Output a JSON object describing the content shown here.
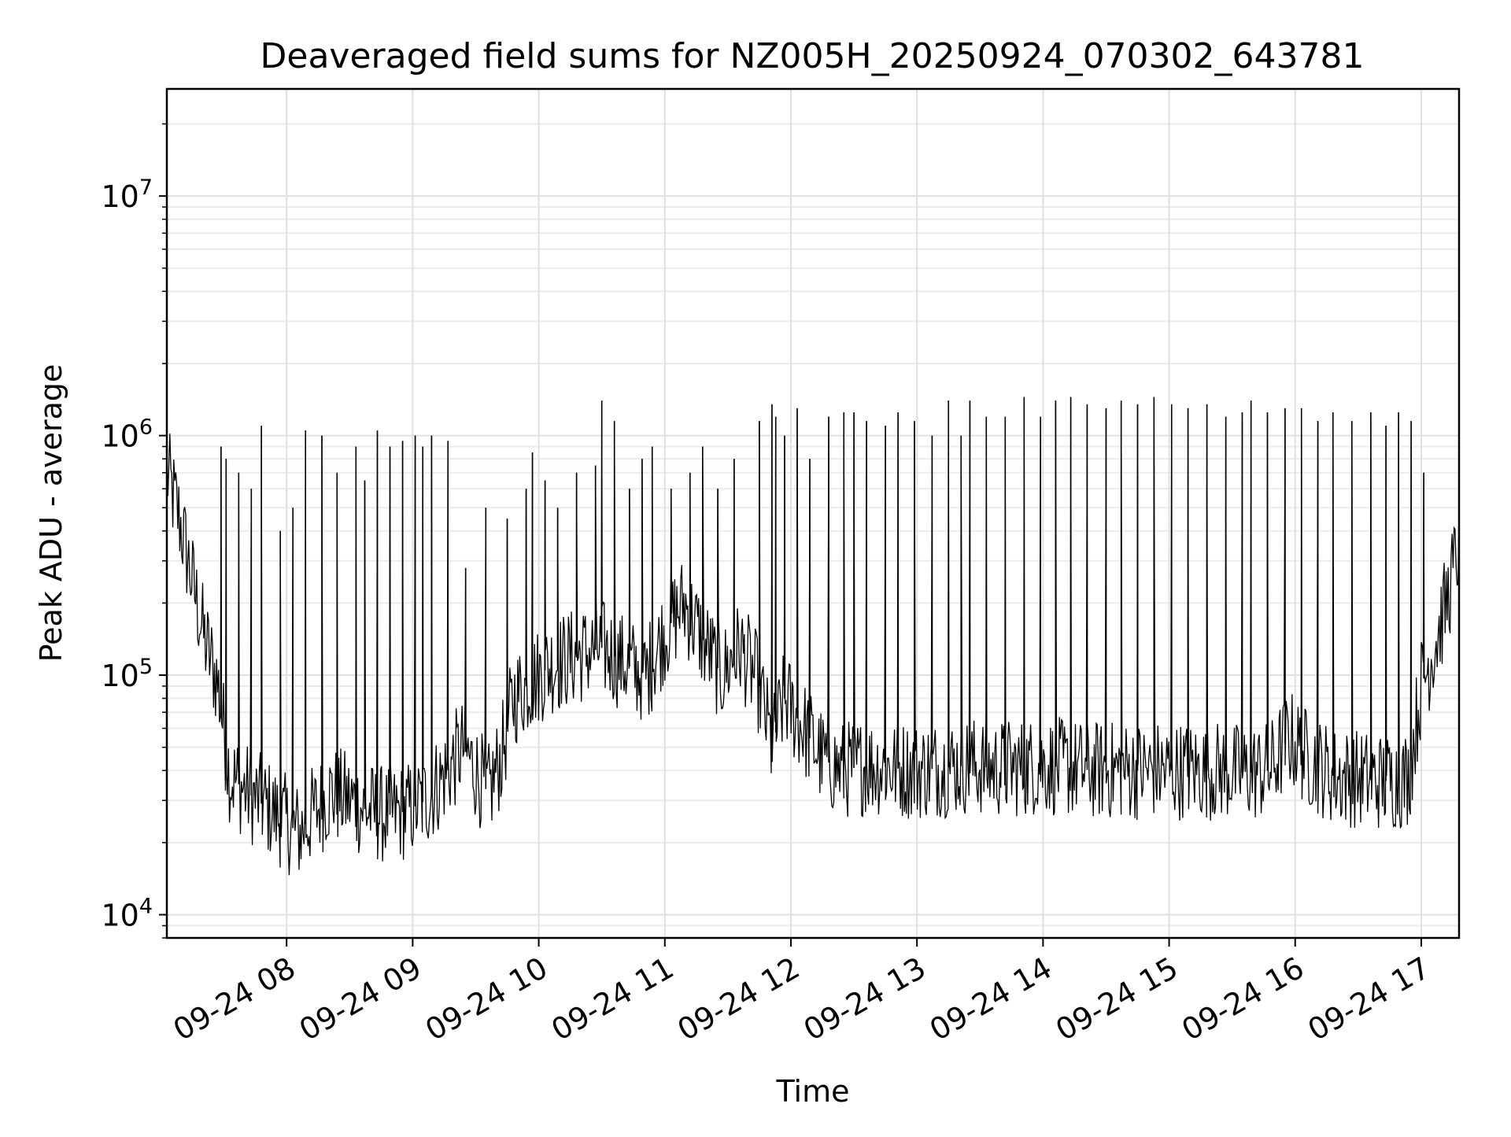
{
  "chart_data": {
    "type": "line",
    "title": "Deaveraged field sums for NZ005H_20250924_070302_643781",
    "xlabel": "Time",
    "ylabel": "Peak ADU - average",
    "yscale": "log",
    "ylim": [
      8000,
      28000000
    ],
    "xlim_hours": [
      7.05,
      17.3
    ],
    "grid": true,
    "y_major_ticks": [
      {
        "value": 10000,
        "base": "10",
        "exp": "4"
      },
      {
        "value": 100000,
        "base": "10",
        "exp": "5"
      },
      {
        "value": 1000000,
        "base": "10",
        "exp": "6"
      },
      {
        "value": 10000000,
        "base": "10",
        "exp": "7"
      }
    ],
    "x_ticks": [
      {
        "value": 8,
        "label": "09-24 08"
      },
      {
        "value": 9,
        "label": "09-24 09"
      },
      {
        "value": 10,
        "label": "09-24 10"
      },
      {
        "value": 11,
        "label": "09-24 11"
      },
      {
        "value": 12,
        "label": "09-24 12"
      },
      {
        "value": 13,
        "label": "09-24 13"
      },
      {
        "value": 14,
        "label": "09-24 14"
      },
      {
        "value": 15,
        "label": "09-24 15"
      },
      {
        "value": 16,
        "label": "09-24 16"
      },
      {
        "value": 17,
        "label": "09-24 17"
      }
    ],
    "baseline": [
      [
        7.05,
        700000
      ],
      [
        7.15,
        450000
      ],
      [
        7.25,
        250000
      ],
      [
        7.35,
        140000
      ],
      [
        7.45,
        95000
      ],
      [
        7.55,
        38000
      ],
      [
        7.7,
        32000
      ],
      [
        7.85,
        28000
      ],
      [
        8.0,
        24000
      ],
      [
        8.1,
        22000
      ],
      [
        8.2,
        26000
      ],
      [
        8.35,
        32000
      ],
      [
        8.5,
        30000
      ],
      [
        8.65,
        27000
      ],
      [
        8.8,
        26000
      ],
      [
        8.95,
        27000
      ],
      [
        9.1,
        30000
      ],
      [
        9.25,
        38000
      ],
      [
        9.4,
        50000
      ],
      [
        9.5,
        40000
      ],
      [
        9.6,
        32000
      ],
      [
        9.7,
        45000
      ],
      [
        9.8,
        80000
      ],
      [
        9.95,
        95000
      ],
      [
        10.1,
        110000
      ],
      [
        10.3,
        120000
      ],
      [
        10.5,
        130000
      ],
      [
        10.7,
        110000
      ],
      [
        10.85,
        100000
      ],
      [
        11.0,
        150000
      ],
      [
        11.15,
        200000
      ],
      [
        11.3,
        140000
      ],
      [
        11.45,
        100000
      ],
      [
        11.6,
        130000
      ],
      [
        11.75,
        90000
      ],
      [
        11.85,
        50000
      ],
      [
        11.95,
        80000
      ],
      [
        12.1,
        60000
      ],
      [
        12.25,
        45000
      ],
      [
        12.4,
        40000
      ],
      [
        12.6,
        42000
      ],
      [
        12.8,
        41000
      ],
      [
        13.0,
        40000
      ],
      [
        13.2,
        41000
      ],
      [
        13.4,
        42000
      ],
      [
        13.6,
        41000
      ],
      [
        13.8,
        41000
      ],
      [
        14.0,
        42000
      ],
      [
        14.2,
        41000
      ],
      [
        14.4,
        40000
      ],
      [
        14.6,
        40000
      ],
      [
        14.8,
        40000
      ],
      [
        15.0,
        40000
      ],
      [
        15.2,
        40000
      ],
      [
        15.4,
        40000
      ],
      [
        15.6,
        39000
      ],
      [
        15.8,
        40000
      ],
      [
        15.95,
        55000
      ],
      [
        16.1,
        45000
      ],
      [
        16.3,
        38000
      ],
      [
        16.5,
        37000
      ],
      [
        16.7,
        36000
      ],
      [
        16.9,
        37000
      ],
      [
        17.0,
        90000
      ],
      [
        17.1,
        130000
      ],
      [
        17.2,
        200000
      ],
      [
        17.3,
        350000
      ]
    ],
    "spikes": [
      [
        7.48,
        900000
      ],
      [
        7.52,
        800000
      ],
      [
        7.62,
        700000
      ],
      [
        7.72,
        600000
      ],
      [
        7.8,
        1100000
      ],
      [
        7.95,
        400000
      ],
      [
        8.05,
        500000
      ],
      [
        8.15,
        1050000
      ],
      [
        8.28,
        1000000
      ],
      [
        8.4,
        700000
      ],
      [
        8.55,
        900000
      ],
      [
        8.62,
        650000
      ],
      [
        8.72,
        1050000
      ],
      [
        8.82,
        900000
      ],
      [
        8.92,
        950000
      ],
      [
        9.02,
        1000000
      ],
      [
        9.08,
        900000
      ],
      [
        9.15,
        1000000
      ],
      [
        9.28,
        950000
      ],
      [
        9.42,
        280000
      ],
      [
        9.58,
        500000
      ],
      [
        9.75,
        450000
      ],
      [
        9.9,
        600000
      ],
      [
        9.95,
        850000
      ],
      [
        10.05,
        650000
      ],
      [
        10.15,
        500000
      ],
      [
        10.3,
        700000
      ],
      [
        10.45,
        750000
      ],
      [
        10.5,
        1400000
      ],
      [
        10.6,
        1150000
      ],
      [
        10.72,
        600000
      ],
      [
        10.82,
        800000
      ],
      [
        10.9,
        900000
      ],
      [
        11.05,
        600000
      ],
      [
        11.2,
        700000
      ],
      [
        11.3,
        900000
      ],
      [
        11.42,
        600000
      ],
      [
        11.55,
        800000
      ],
      [
        11.75,
        1150000
      ],
      [
        11.85,
        1350000
      ],
      [
        11.88,
        1200000
      ],
      [
        11.95,
        1000000
      ],
      [
        12.05,
        1300000
      ],
      [
        12.15,
        800000
      ],
      [
        12.3,
        1200000
      ],
      [
        12.42,
        1250000
      ],
      [
        12.5,
        1250000
      ],
      [
        12.6,
        1150000
      ],
      [
        12.75,
        1100000
      ],
      [
        12.85,
        1250000
      ],
      [
        12.98,
        1150000
      ],
      [
        13.12,
        1000000
      ],
      [
        13.25,
        1400000
      ],
      [
        13.35,
        1000000
      ],
      [
        13.42,
        1400000
      ],
      [
        13.55,
        1200000
      ],
      [
        13.7,
        1200000
      ],
      [
        13.85,
        1450000
      ],
      [
        13.98,
        1200000
      ],
      [
        14.1,
        1400000
      ],
      [
        14.22,
        1450000
      ],
      [
        14.35,
        1350000
      ],
      [
        14.5,
        1300000
      ],
      [
        14.62,
        1400000
      ],
      [
        14.75,
        1350000
      ],
      [
        14.88,
        1450000
      ],
      [
        15.02,
        1350000
      ],
      [
        15.15,
        1300000
      ],
      [
        15.3,
        1350000
      ],
      [
        15.45,
        1200000
      ],
      [
        15.58,
        1250000
      ],
      [
        15.65,
        1400000
      ],
      [
        15.78,
        1250000
      ],
      [
        15.92,
        1300000
      ],
      [
        16.05,
        1300000
      ],
      [
        16.18,
        1150000
      ],
      [
        16.3,
        1250000
      ],
      [
        16.45,
        1150000
      ],
      [
        16.6,
        1250000
      ],
      [
        16.72,
        1100000
      ],
      [
        16.82,
        1250000
      ],
      [
        16.92,
        1150000
      ],
      [
        17.02,
        700000
      ]
    ]
  }
}
